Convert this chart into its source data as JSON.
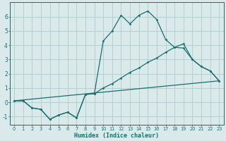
{
  "xlabel": "Humidex (Indice chaleur)",
  "bg_color": "#daeaea",
  "grid_color": "#b0cccc",
  "line_color": "#1a6e6e",
  "xlim": [
    -0.5,
    23.5
  ],
  "ylim": [
    -1.6,
    7.0
  ],
  "yticks": [
    -1,
    0,
    1,
    2,
    3,
    4,
    5,
    6
  ],
  "xticks": [
    0,
    1,
    2,
    3,
    4,
    5,
    6,
    7,
    8,
    9,
    10,
    11,
    12,
    13,
    14,
    15,
    16,
    17,
    18,
    19,
    20,
    21,
    22,
    23
  ],
  "line1_x": [
    0,
    1,
    2,
    3,
    4,
    5,
    6,
    7,
    8,
    9,
    10,
    11,
    12,
    13,
    14,
    15,
    16,
    17,
    18,
    19,
    20,
    21,
    22,
    23
  ],
  "line1_y": [
    0.1,
    0.1,
    -0.4,
    -0.5,
    -1.2,
    -0.9,
    -0.7,
    -1.1,
    0.55,
    0.6,
    4.3,
    5.0,
    6.1,
    5.5,
    6.1,
    6.4,
    5.8,
    4.4,
    3.85,
    3.8,
    3.0,
    2.5,
    2.2,
    1.5
  ],
  "line2_x": [
    0,
    1,
    2,
    3,
    4,
    5,
    6,
    7,
    8,
    9,
    10,
    11,
    12,
    13,
    14,
    15,
    16,
    17,
    18,
    19,
    20,
    21,
    22,
    23
  ],
  "line2_y": [
    0.1,
    0.1,
    -0.4,
    -0.5,
    -1.2,
    -0.9,
    -0.7,
    -1.1,
    0.55,
    0.6,
    1.0,
    1.3,
    1.7,
    2.1,
    2.4,
    2.8,
    3.1,
    3.5,
    3.85,
    4.1,
    3.0,
    2.5,
    2.2,
    1.5
  ],
  "line3_x": [
    0,
    23
  ],
  "line3_y": [
    0.1,
    1.5
  ]
}
